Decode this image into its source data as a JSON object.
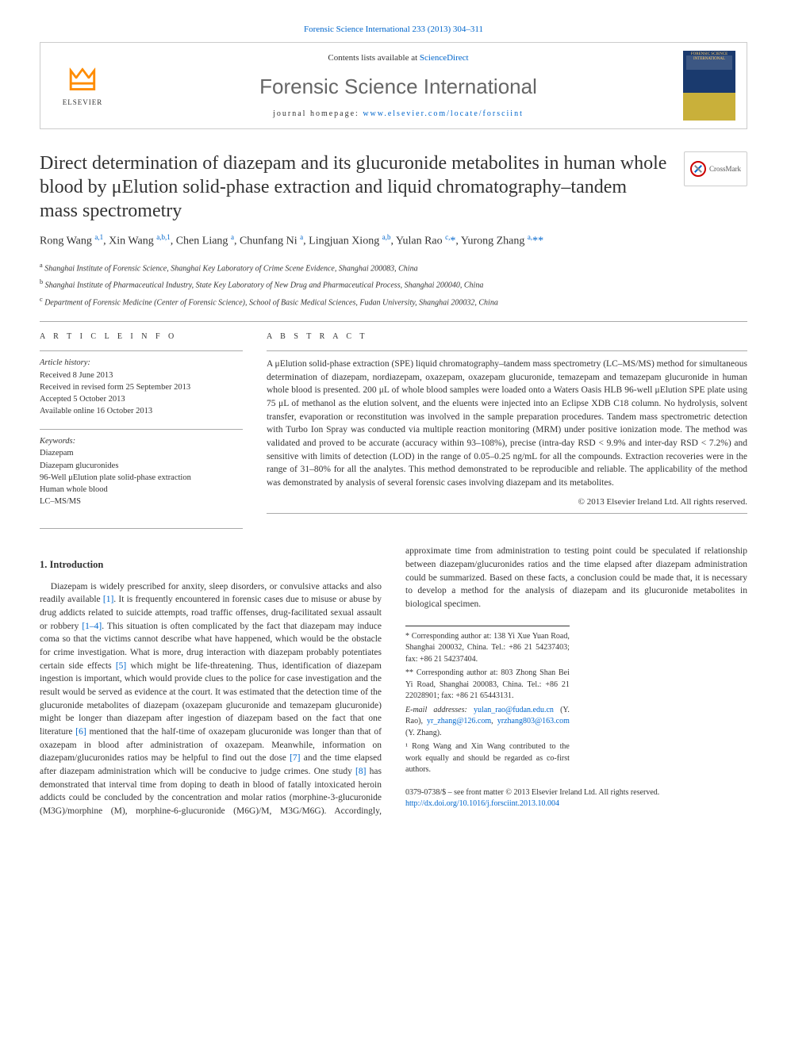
{
  "top_citation": "Forensic Science International 233 (2013) 304–311",
  "header": {
    "contents_prefix": "Contents lists available at ",
    "contents_link": "ScienceDirect",
    "journal_name": "Forensic Science International",
    "homepage_prefix": "journal homepage: ",
    "homepage_url": "www.elsevier.com/locate/forsciint",
    "elsevier_label": "ELSEVIER",
    "cover_label": "FORENSIC SCIENCE INTERNATIONAL"
  },
  "crossmark_label": "CrossMark",
  "title": "Direct determination of diazepam and its glucuronide metabolites in human whole blood by μElution solid-phase extraction and liquid chromatography–tandem mass spectrometry",
  "authors_html": "Rong Wang <sup>a,1</sup>, Xin Wang <sup>a,b,1</sup>, Chen Liang <sup>a</sup>, Chunfang Ni <sup>a</sup>, Lingjuan Xiong <sup>a,b</sup>, Yulan Rao <sup>c,</sup><span class='star'>*</span>, Yurong Zhang <sup>a,</sup><span class='star'>**</span>",
  "affiliations": [
    {
      "sup": "a",
      "text": "Shanghai Institute of Forensic Science, Shanghai Key Laboratory of Crime Scene Evidence, Shanghai 200083, China"
    },
    {
      "sup": "b",
      "text": "Shanghai Institute of Pharmaceutical Industry, State Key Laboratory of New Drug and Pharmaceutical Process, Shanghai 200040, China"
    },
    {
      "sup": "c",
      "text": "Department of Forensic Medicine (Center of Forensic Science), School of Basic Medical Sciences, Fudan University, Shanghai 200032, China"
    }
  ],
  "info": {
    "heading": "A R T I C L E    I N F O",
    "history_label": "Article history:",
    "history": [
      "Received 8 June 2013",
      "Received in revised form 25 September 2013",
      "Accepted 5 October 2013",
      "Available online 16 October 2013"
    ],
    "keywords_label": "Keywords:",
    "keywords": [
      "Diazepam",
      "Diazepam glucuronides",
      "96-Well μElution plate solid-phase extraction",
      "Human whole blood",
      "LC–MS/MS"
    ]
  },
  "abstract": {
    "heading": "A B S T R A C T",
    "text": "A μElution solid-phase extraction (SPE) liquid chromatography–tandem mass spectrometry (LC–MS/MS) method for simultaneous determination of diazepam, nordiazepam, oxazepam, oxazepam glucuronide, temazepam and temazepam glucuronide in human whole blood is presented. 200 μL of whole blood samples were loaded onto a Waters Oasis HLB 96-well μElution SPE plate using 75 μL of methanol as the elution solvent, and the eluents were injected into an Eclipse XDB C18 column. No hydrolysis, solvent transfer, evaporation or reconstitution was involved in the sample preparation procedures. Tandem mass spectrometric detection with Turbo Ion Spray was conducted via multiple reaction monitoring (MRM) under positive ionization mode. The method was validated and proved to be accurate (accuracy within 93–108%), precise (intra-day RSD < 9.9% and inter-day RSD < 7.2%) and sensitive with limits of detection (LOD) in the range of 0.05–0.25 ng/mL for all the compounds. Extraction recoveries were in the range of 31–80% for all the analytes. This method demonstrated to be reproducible and reliable. The applicability of the method was demonstrated by analysis of several forensic cases involving diazepam and its metabolites.",
    "copyright": "© 2013 Elsevier Ireland Ltd. All rights reserved."
  },
  "intro": {
    "heading": "1. Introduction",
    "para1a": "Diazepam is widely prescribed for anxity, sleep disorders, or convulsive attacks and also readily available ",
    "ref1": "[1]",
    "para1b": ". It is frequently encountered in forensic cases due to misuse or abuse by drug addicts related to suicide attempts, road traffic offenses, drug-facilitated sexual assault or robbery ",
    "ref2": "[1–4]",
    "para1c": ". This situation is often complicated by the fact that diazepam may induce coma so that the victims cannot describe what have happened, which would be the obstacle for crime investigation. What is more, drug interaction with diazepam probably potentiates certain side effects ",
    "ref3": "[5]",
    "para1d": " which might be life-threatening. Thus, identification of diazepam ingestion is important, which would provide clues ",
    "para2a": "to the police for case investigation and the result would be served as evidence at the court. It was estimated that the detection time of the glucuronide metabolites of diazepam (oxazepam glucuronide and temazepam glucuronide) might be longer than diazepam after ingestion of diazepam based on the fact that one literature ",
    "ref4": "[6]",
    "para2b": " mentioned that the half-time of oxazepam glucuronide was longer than that of oxazepam in blood after administration of oxazepam. Meanwhile, information on diazepam/glucuronides ratios may be helpful to find out the dose ",
    "ref5": "[7]",
    "para2c": " and the time elapsed after diazepam administration which will be conducive to judge crimes. One study ",
    "ref6": "[8]",
    "para2d": " has demonstrated that interval time from doping to death in blood of fatally intoxicated heroin addicts could be concluded by the concentration and molar ratios (morphine-3-glucuronide (M3G)/morphine (M), morphine-6-glucuronide (M6G)/M, M3G/M6G). Accordingly, approximate time from administration to testing point could be speculated if relationship between diazepam/glucuronides ratios and the time elapsed after diazepam administration could be summarized. Based on these facts, a conclusion could be made that, it is necessary to develop a method for the analysis of diazepam and its glucuronide metabolites in biological specimen."
  },
  "footnotes": {
    "f1": "* Corresponding author at: 138 Yi Xue Yuan Road, Shanghai 200032, China. Tel.: +86 21 54237403; fax: +86 21 54237404.",
    "f2": "** Corresponding author at: 803 Zhong Shan Bei Yi Road, Shanghai 200083, China. Tel.: +86 21 22028901; fax: +86 21 65443131.",
    "emails_label": "E-mail addresses: ",
    "email1": "yulan_rao@fudan.edu.cn",
    "email1_suffix": " (Y. Rao), ",
    "email2": "yr_zhang@126.com",
    "email2_sep": ", ",
    "email3": "yrzhang803@163.com",
    "email3_suffix": " (Y. Zhang).",
    "f3": "¹ Rong Wang and Xin Wang contributed to the work equally and should be regarded as co-first authors."
  },
  "footer": {
    "line1": "0379-0738/$ – see front matter © 2013 Elsevier Ireland Ltd. All rights reserved.",
    "doi": "http://dx.doi.org/10.1016/j.forsciint.2013.10.004"
  },
  "colors": {
    "link": "#0066cc",
    "text": "#333333",
    "border": "#cccccc",
    "elsevier_orange": "#ff8c00",
    "journal_gray": "#666666"
  },
  "fonts": {
    "body": "Georgia, 'Times New Roman', serif",
    "journal": "Arial, sans-serif",
    "title_size": 24,
    "journal_size": 26,
    "body_size": 11.5,
    "info_size": 10.5,
    "footnote_size": 10
  }
}
